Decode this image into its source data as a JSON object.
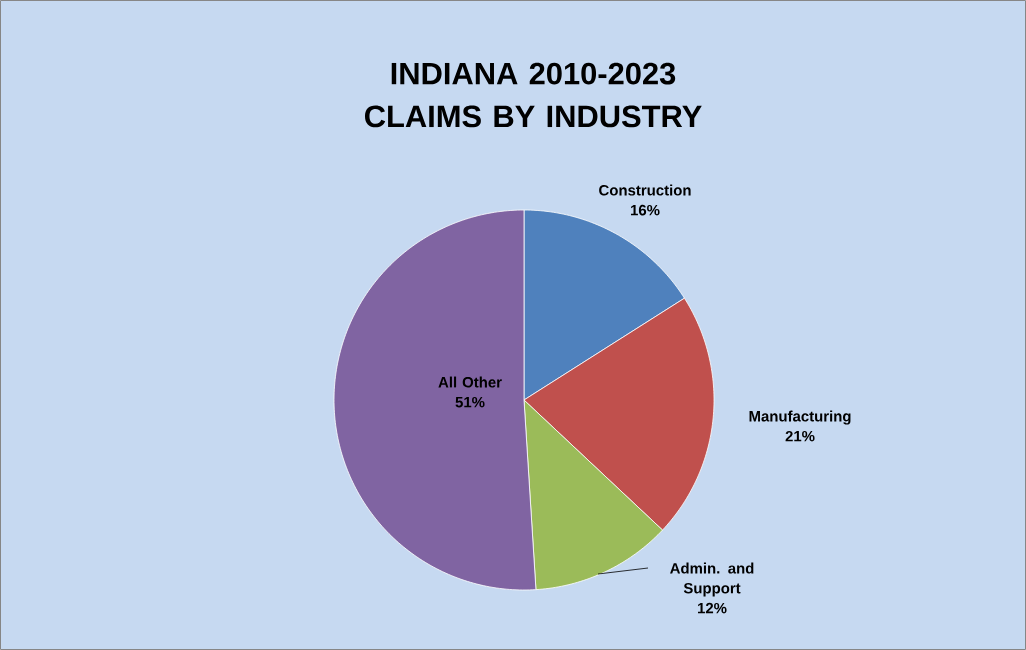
{
  "chart_data": {
    "type": "pie",
    "title": "INDIANA 2010-2023 CLAIMS BY INDUSTRY",
    "categories": [
      "Construction",
      "Manufacturing",
      "Admin. and Support",
      "All Other"
    ],
    "values": [
      16,
      21,
      12,
      51
    ],
    "colors": [
      "#4f81bd",
      "#c0504d",
      "#9bbb59",
      "#8064a2"
    ],
    "value_labels": [
      "16%",
      "21%",
      "12%",
      "51%"
    ]
  }
}
